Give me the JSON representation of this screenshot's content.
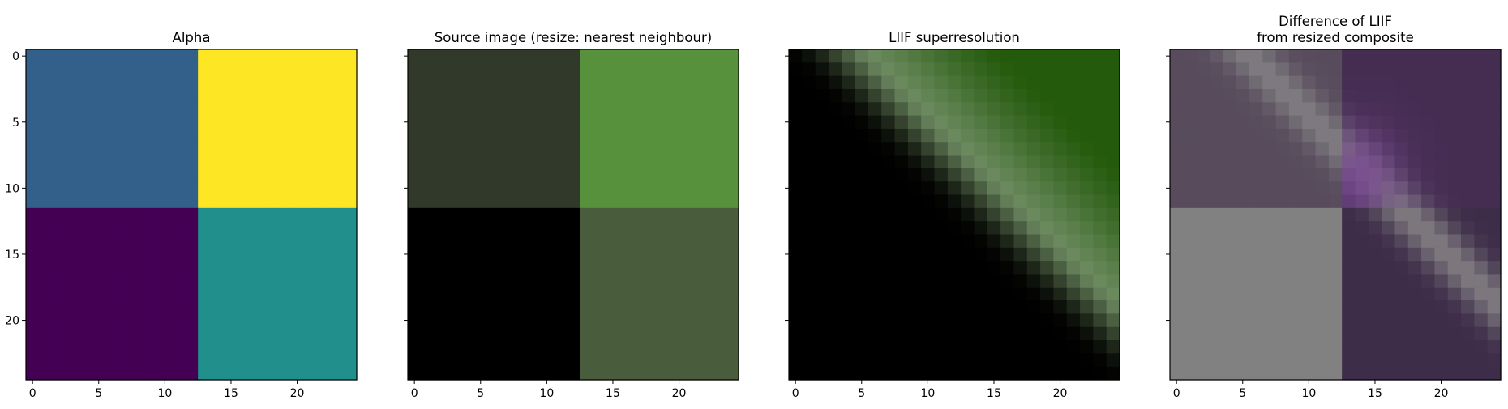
{
  "chart_data": [
    {
      "type": "heatmap",
      "title": "Alpha",
      "colormap": "viridis",
      "x_ticks": [
        0,
        5,
        10,
        15,
        20
      ],
      "y_ticks": [
        0,
        5,
        10,
        15,
        20
      ],
      "xlim": [
        -0.5,
        24.5
      ],
      "ylim": [
        24.5,
        -0.5
      ],
      "grid": false,
      "quadrants": [
        {
          "rows": [
            0,
            11
          ],
          "cols": [
            0,
            12
          ],
          "value": 0.33,
          "color": "#33608b"
        },
        {
          "rows": [
            0,
            11
          ],
          "cols": [
            13,
            24
          ],
          "value": 1.0,
          "color": "#fde725"
        },
        {
          "rows": [
            12,
            24
          ],
          "cols": [
            0,
            12
          ],
          "value": 0.0,
          "color": "#440154"
        },
        {
          "rows": [
            12,
            24
          ],
          "cols": [
            13,
            24
          ],
          "value": 0.5,
          "color": "#21908c"
        }
      ]
    },
    {
      "type": "heatmap",
      "title": "Source image (resize: nearest neighbour)",
      "x_ticks": [
        0,
        5,
        10,
        15,
        20
      ],
      "y_ticks": [
        0,
        5,
        10,
        15,
        20
      ],
      "xlim": [
        -0.5,
        24.5
      ],
      "ylim": [
        24.5,
        -0.5
      ],
      "grid": false,
      "quadrants": [
        {
          "rows": [
            0,
            11
          ],
          "cols": [
            0,
            12
          ],
          "color": "#313a2a"
        },
        {
          "rows": [
            0,
            11
          ],
          "cols": [
            13,
            24
          ],
          "color": "#58913c"
        },
        {
          "rows": [
            12,
            24
          ],
          "cols": [
            0,
            12
          ],
          "color": "#000000"
        },
        {
          "rows": [
            12,
            24
          ],
          "cols": [
            13,
            24
          ],
          "color": "#495d3c"
        }
      ]
    },
    {
      "type": "heatmap",
      "title": "LIIF superresolution",
      "x_ticks": [
        0,
        5,
        10,
        15,
        20
      ],
      "y_ticks": [
        0,
        5,
        10,
        15,
        20
      ],
      "xlim": [
        -0.5,
        24.5
      ],
      "ylim": [
        24.5,
        -0.5
      ],
      "grid": false,
      "colors": {
        "dark": "#000000",
        "band": "#6e8c62",
        "corner": "#245a0c"
      }
    },
    {
      "type": "heatmap",
      "title": "Difference of LIIF\nfrom resized composite",
      "x_ticks": [
        0,
        5,
        10,
        15,
        20
      ],
      "y_ticks": [
        0,
        5,
        10,
        15,
        20
      ],
      "xlim": [
        -0.5,
        24.5
      ],
      "ylim": [
        24.5,
        -0.5
      ],
      "grid": false,
      "colors": {
        "top_left": "#574b5c",
        "top_right": "#452d52",
        "bottom_left": "#818181",
        "bottom_right": "#3e2d48",
        "band": "#8c8c8c",
        "purple_glow": "#7a4894"
      }
    }
  ]
}
